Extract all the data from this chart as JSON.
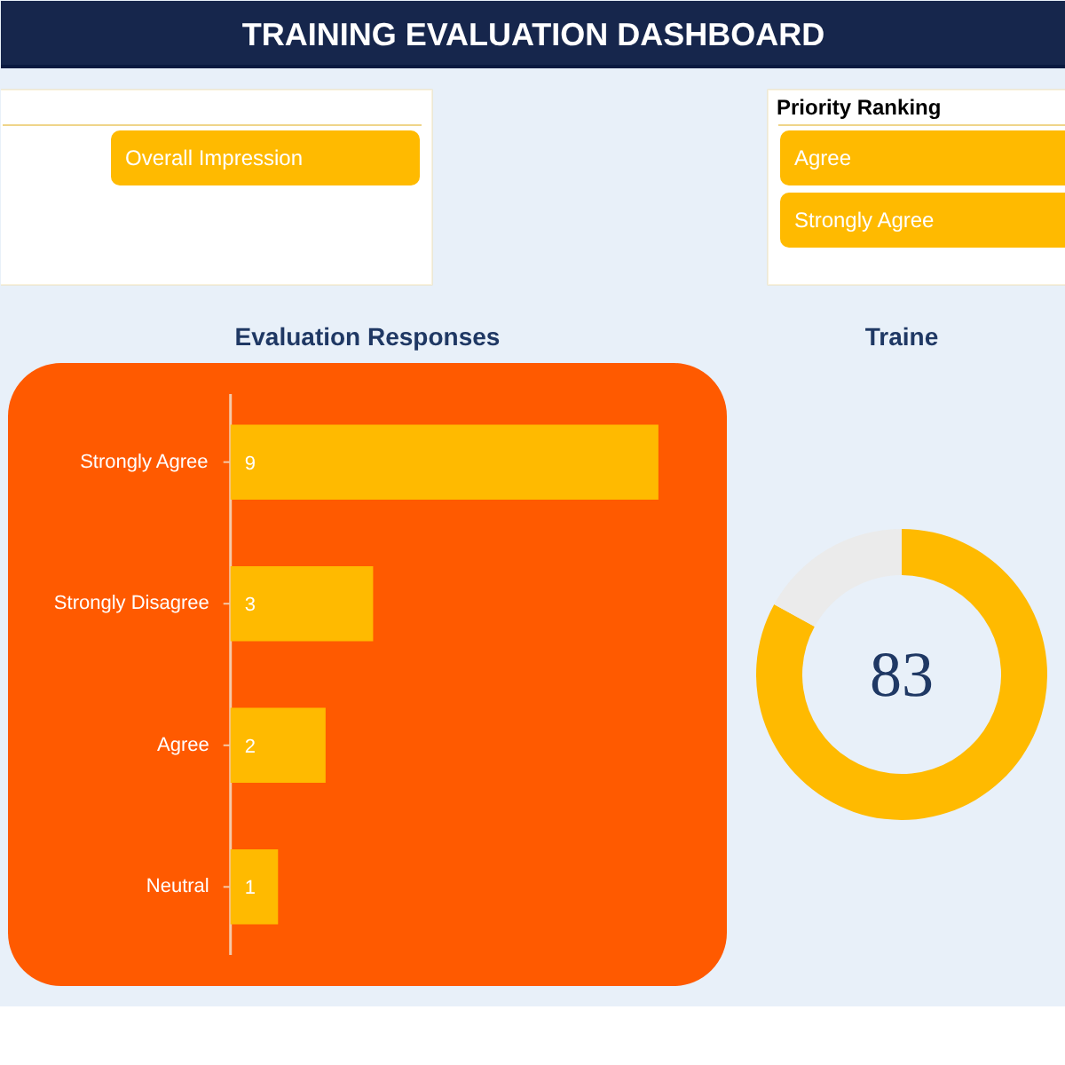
{
  "chart_data": [
    {
      "type": "other",
      "title": "TRAINING EVALUATION DASHBOARD",
      "annotations": [
        "Overall Impression"
      ]
    },
    {
      "type": "other",
      "title": "Priority Ranking",
      "annotations": [
        "Agree",
        "Strongly Agree"
      ]
    },
    {
      "type": "bar",
      "title": "Evaluation Responses",
      "orientation": "horizontal",
      "categories": [
        "Strongly Agree",
        "Strongly Disagree",
        "Agree",
        "Neutral"
      ],
      "values": [
        9,
        3,
        2,
        1
      ],
      "color": "#ffba00",
      "data_labels": true
    },
    {
      "type": "donut",
      "title": "Traine",
      "categories": [
        null,
        null
      ],
      "values": [
        83,
        17
      ],
      "colors": [
        "#ffba00",
        "#ebebeb"
      ],
      "annotations": [
        "83"
      ]
    }
  ]
}
